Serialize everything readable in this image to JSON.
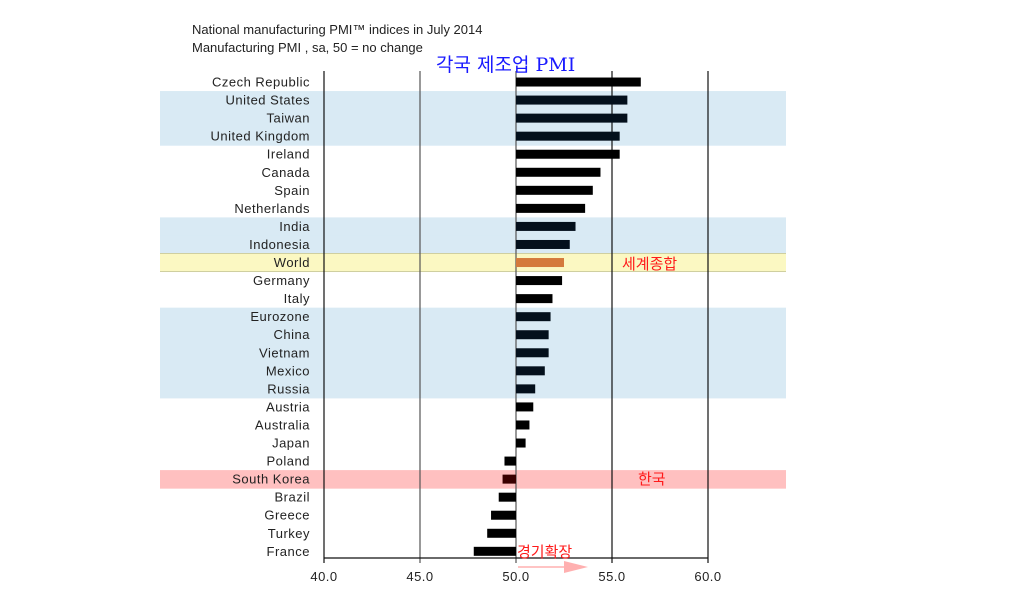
{
  "chart_data": {
    "type": "bar",
    "orientation": "horizontal",
    "title": "National manufacturing PMI™ indices in July 2014",
    "subtitle": "Manufacturing PMI , sa, 50 = no change",
    "xlim": [
      40,
      60
    ],
    "baseline": 50,
    "xticks": [
      "40.0",
      "45.0",
      "50.0",
      "55.0",
      "60.0"
    ],
    "xtick_values": [
      40,
      45,
      50,
      55,
      60
    ],
    "grid": true,
    "categories": [
      "Czech Republic",
      "United States",
      "Taiwan",
      "United Kingdom",
      "Ireland",
      "Canada",
      "Spain",
      "Netherlands",
      "India",
      "Indonesia",
      "World",
      "Germany",
      "Italy",
      "Eurozone",
      "China",
      "Vietnam",
      "Mexico",
      "Russia",
      "Austria",
      "Australia",
      "Japan",
      "Poland",
      "South Korea",
      "Brazil",
      "Greece",
      "Turkey",
      "France"
    ],
    "values": [
      56.5,
      55.8,
      55.8,
      55.4,
      55.4,
      54.4,
      54.0,
      53.6,
      53.1,
      52.8,
      52.5,
      52.4,
      51.9,
      51.8,
      51.7,
      51.7,
      51.5,
      51.0,
      50.9,
      50.7,
      50.5,
      49.4,
      49.3,
      49.1,
      48.7,
      48.5,
      47.8
    ],
    "row_highlight": [
      "none",
      "blue",
      "blue",
      "blue",
      "none",
      "none",
      "none",
      "none",
      "blue",
      "blue",
      "yellow",
      "none",
      "none",
      "blue",
      "blue",
      "blue",
      "blue",
      "blue",
      "none",
      "none",
      "none",
      "none",
      "red",
      "none",
      "none",
      "none",
      "none"
    ]
  },
  "colors": {
    "bar": "#000000",
    "bar_highlight_blue": "#04101c",
    "bar_world": "#d47a3c",
    "bar_korea": "#3a0000",
    "band_blue": "#d9eaf4",
    "band_yellow": "#fbf8c2",
    "band_red": "#ffc0c0",
    "annotation_blue": "#1a1aff",
    "annotation_red": "#ff1a1a"
  },
  "annotations": {
    "top": "각국 제조업 PMI",
    "world": "세계종합",
    "korea": "한국",
    "expansion": "경기확장"
  }
}
